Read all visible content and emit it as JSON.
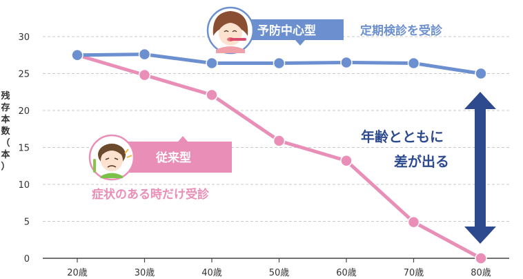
{
  "chart_data": {
    "type": "line",
    "categories": [
      "20歳",
      "30歳",
      "40歳",
      "50歳",
      "60歳",
      "70歳",
      "80歳"
    ],
    "ylabel": "残存本数（本）",
    "ylim": [
      0,
      30
    ],
    "yticks": [
      0,
      5,
      10,
      15,
      20,
      25,
      30
    ],
    "grid": true,
    "series": [
      {
        "name": "予防中心型",
        "description": "定期検診を受診",
        "color": "#6b8fcf",
        "values": [
          27.5,
          27.6,
          26.4,
          26.4,
          26.5,
          26.4,
          25.0
        ]
      },
      {
        "name": "従来型",
        "description": "症状のある時だけ受診",
        "color": "#e98fb7",
        "values": [
          27.5,
          24.8,
          22.1,
          15.9,
          13.2,
          4.9,
          0.0
        ]
      }
    ],
    "annotation": {
      "line1": "年齢とともに",
      "line2": "差が出る",
      "color": "#2e4a8f"
    }
  },
  "colors": {
    "grid": "#c8c8c8",
    "axis": "#444444",
    "arrow": "#2e4a8f"
  },
  "icons": [
    "woman-brushing-teeth-icon",
    "child-toothache-icon"
  ]
}
